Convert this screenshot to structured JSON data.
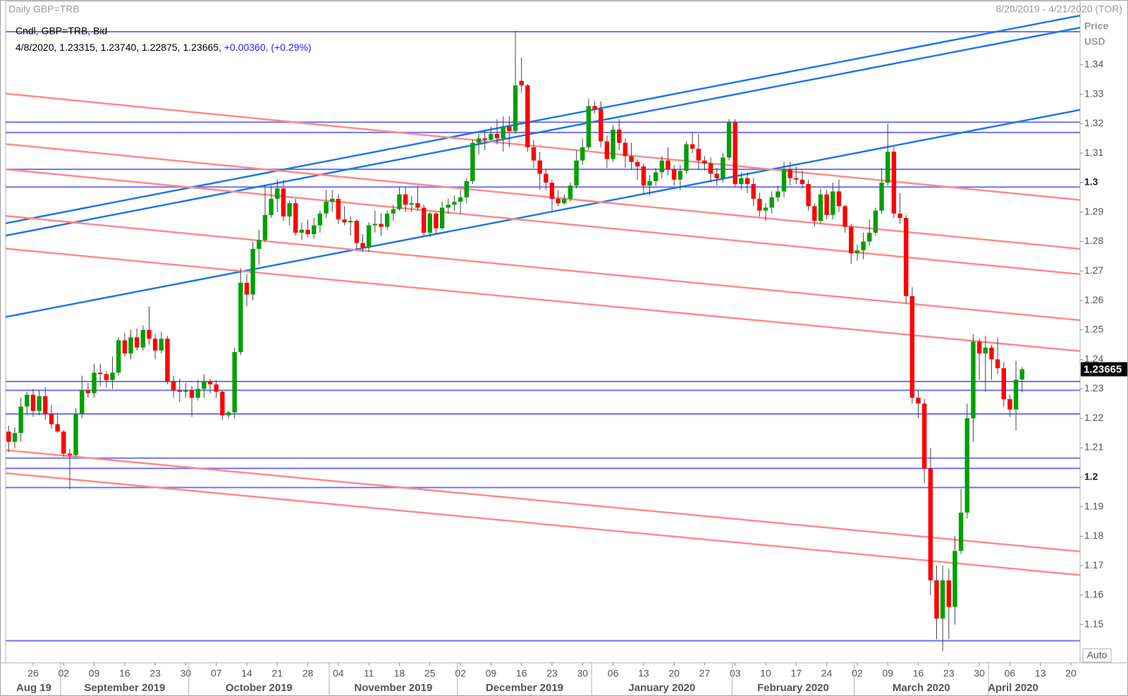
{
  "chart_data": {
    "type": "candlestick",
    "title": "Daily GBP=TRB",
    "date_range": "8/20/2019 - 4/21/2020 (TOR)",
    "legend_title": "Cndl, GBP=TRB, Bid",
    "last_labels": {
      "open": "1.23315",
      "high": "1.23740",
      "low": "1.22875",
      "close": "1.23665"
    },
    "change_label": "+0.00360,",
    "change_percent_label": "(+0.29%)",
    "ylabel": "Price",
    "yunit": "USD",
    "scale_button": "Auto",
    "up_color": "#00a000",
    "down_color": "#ff0000",
    "xlim": [
      "8/20/2019",
      "4/21/2020"
    ],
    "ylim": [
      1.137,
      1.3615
    ],
    "yticks": [
      1.15,
      1.16,
      1.17,
      1.18,
      1.19,
      1.2,
      1.21,
      1.22,
      1.23,
      1.24,
      1.25,
      1.26,
      1.27,
      1.28,
      1.29,
      1.3,
      1.31,
      1.32,
      1.33,
      1.34
    ],
    "xticks": [
      {
        "value": "8/26/2019",
        "label": "26"
      },
      {
        "value": "9/2/2019",
        "label": "02"
      },
      {
        "value": "9/9/2019",
        "label": "09"
      },
      {
        "value": "9/16/2019",
        "label": "16"
      },
      {
        "value": "9/23/2019",
        "label": "23"
      },
      {
        "value": "9/30/2019",
        "label": "30"
      },
      {
        "value": "10/7/2019",
        "label": "07"
      },
      {
        "value": "10/14/2019",
        "label": "14"
      },
      {
        "value": "10/21/2019",
        "label": "21"
      },
      {
        "value": "10/28/2019",
        "label": "28"
      },
      {
        "value": "11/4/2019",
        "label": "04"
      },
      {
        "value": "11/11/2019",
        "label": "11"
      },
      {
        "value": "11/18/2019",
        "label": "18"
      },
      {
        "value": "11/25/2019",
        "label": "25"
      },
      {
        "value": "12/2/2019",
        "label": "02"
      },
      {
        "value": "12/9/2019",
        "label": "09"
      },
      {
        "value": "12/16/2019",
        "label": "16"
      },
      {
        "value": "12/23/2019",
        "label": "23"
      },
      {
        "value": "12/30/2019",
        "label": "30"
      },
      {
        "value": "1/6/2020",
        "label": "06"
      },
      {
        "value": "1/13/2020",
        "label": "13"
      },
      {
        "value": "1/20/2020",
        "label": "20"
      },
      {
        "value": "1/27/2020",
        "label": "27"
      },
      {
        "value": "2/3/2020",
        "label": "03"
      },
      {
        "value": "2/10/2020",
        "label": "10"
      },
      {
        "value": "2/17/2020",
        "label": "17"
      },
      {
        "value": "2/24/2020",
        "label": "24"
      },
      {
        "value": "3/2/2020",
        "label": "02"
      },
      {
        "value": "3/9/2020",
        "label": "09"
      },
      {
        "value": "3/16/2020",
        "label": "16"
      },
      {
        "value": "3/23/2020",
        "label": "23"
      },
      {
        "value": "3/30/2020",
        "label": "30"
      },
      {
        "value": "4/6/2020",
        "label": "06"
      },
      {
        "value": "4/13/2020",
        "label": "13"
      },
      {
        "value": "4/20/2020",
        "label": "20"
      }
    ],
    "months": [
      {
        "value": "8/1/2019",
        "label": "Aug 19"
      },
      {
        "value": "9/1/2019",
        "label": "September 2019"
      },
      {
        "value": "10/1/2019",
        "label": "October 2019"
      },
      {
        "value": "11/1/2019",
        "label": "November 2019"
      },
      {
        "value": "12/1/2019",
        "label": "December 2019"
      },
      {
        "value": "1/1/2020",
        "label": "January 2020"
      },
      {
        "value": "2/1/2020",
        "label": "February 2020"
      },
      {
        "value": "3/1/2020",
        "label": "March 2020"
      },
      {
        "value": "4/1/2020",
        "label": "April 2020"
      }
    ],
    "hlines": {
      "color": "#7272f2",
      "values": [
        1.3512,
        1.3205,
        1.317,
        1.3045,
        1.2985,
        1.2325,
        1.2295,
        1.2215,
        1.2065,
        1.203,
        1.1965,
        1.1445
      ]
    },
    "trendlines": [
      {
        "color": "#1f77e8",
        "points": [
          [
            "8/20/2019",
            1.2864
          ],
          [
            "4/21/2020",
            1.3565
          ]
        ]
      },
      {
        "color": "#1f77e8",
        "points": [
          [
            "8/20/2019",
            1.2822
          ],
          [
            "4/21/2020",
            1.3524
          ]
        ]
      },
      {
        "color": "#1f77e8",
        "points": [
          [
            "8/20/2019",
            1.2546
          ],
          [
            "4/21/2020",
            1.3245
          ]
        ]
      },
      {
        "color": "#ff8a8a",
        "points": [
          [
            "8/20/2019",
            1.3301
          ],
          [
            "4/21/2020",
            1.2942
          ]
        ]
      },
      {
        "color": "#ff8a8a",
        "points": [
          [
            "8/20/2019",
            1.313
          ],
          [
            "4/21/2020",
            1.2776
          ]
        ]
      },
      {
        "color": "#ff8a8a",
        "points": [
          [
            "8/20/2019",
            1.3044
          ],
          [
            "4/21/2020",
            1.269
          ]
        ]
      },
      {
        "color": "#ff8a8a",
        "points": [
          [
            "8/20/2019",
            1.2886
          ],
          [
            "4/21/2020",
            1.2534
          ]
        ]
      },
      {
        "color": "#ff8a8a",
        "points": [
          [
            "8/20/2019",
            1.2775
          ],
          [
            "4/21/2020",
            1.2429
          ]
        ]
      },
      {
        "color": "#ff8a8a",
        "points": [
          [
            "8/20/2019",
            1.2091
          ],
          [
            "4/21/2020",
            1.1749
          ]
        ]
      },
      {
        "color": "#ff8a8a",
        "points": [
          [
            "8/20/2019",
            1.2013
          ],
          [
            "4/21/2020",
            1.1669
          ]
        ]
      }
    ],
    "x": [
      "8/20/2019",
      "8/21/2019",
      "8/22/2019",
      "8/23/2019",
      "8/26/2019",
      "8/27/2019",
      "8/28/2019",
      "8/29/2019",
      "8/30/2019",
      "9/2/2019",
      "9/3/2019",
      "9/4/2019",
      "9/5/2019",
      "9/6/2019",
      "9/9/2019",
      "9/10/2019",
      "9/11/2019",
      "9/12/2019",
      "9/13/2019",
      "9/16/2019",
      "9/17/2019",
      "9/18/2019",
      "9/19/2019",
      "9/20/2019",
      "9/23/2019",
      "9/24/2019",
      "9/25/2019",
      "9/26/2019",
      "9/27/2019",
      "9/30/2019",
      "10/1/2019",
      "10/2/2019",
      "10/3/2019",
      "10/4/2019",
      "10/7/2019",
      "10/8/2019",
      "10/9/2019",
      "10/10/2019",
      "10/11/2019",
      "10/14/2019",
      "10/15/2019",
      "10/16/2019",
      "10/17/2019",
      "10/18/2019",
      "10/21/2019",
      "10/22/2019",
      "10/23/2019",
      "10/24/2019",
      "10/25/2019",
      "10/28/2019",
      "10/29/2019",
      "10/30/2019",
      "10/31/2019",
      "11/1/2019",
      "11/4/2019",
      "11/5/2019",
      "11/6/2019",
      "11/7/2019",
      "11/8/2019",
      "11/11/2019",
      "11/12/2019",
      "11/13/2019",
      "11/14/2019",
      "11/15/2019",
      "11/18/2019",
      "11/19/2019",
      "11/20/2019",
      "11/21/2019",
      "11/22/2019",
      "11/25/2019",
      "11/26/2019",
      "11/27/2019",
      "11/28/2019",
      "11/29/2019",
      "12/2/2019",
      "12/3/2019",
      "12/4/2019",
      "12/5/2019",
      "12/6/2019",
      "12/9/2019",
      "12/10/2019",
      "12/11/2019",
      "12/12/2019",
      "12/13/2019",
      "12/16/2019",
      "12/17/2019",
      "12/18/2019",
      "12/19/2019",
      "12/20/2019",
      "12/23/2019",
      "12/24/2019",
      "12/25/2019",
      "12/26/2019",
      "12/27/2019",
      "12/30/2019",
      "12/31/2019",
      "1/1/2020",
      "1/2/2020",
      "1/3/2020",
      "1/6/2020",
      "1/7/2020",
      "1/8/2020",
      "1/9/2020",
      "1/10/2020",
      "1/13/2020",
      "1/14/2020",
      "1/15/2020",
      "1/16/2020",
      "1/17/2020",
      "1/20/2020",
      "1/21/2020",
      "1/22/2020",
      "1/23/2020",
      "1/24/2020",
      "1/27/2020",
      "1/28/2020",
      "1/29/2020",
      "1/30/2020",
      "1/31/2020",
      "2/3/2020",
      "2/4/2020",
      "2/5/2020",
      "2/6/2020",
      "2/7/2020",
      "2/10/2020",
      "2/11/2020",
      "2/12/2020",
      "2/13/2020",
      "2/14/2020",
      "2/17/2020",
      "2/18/2020",
      "2/19/2020",
      "2/20/2020",
      "2/21/2020",
      "2/24/2020",
      "2/25/2020",
      "2/26/2020",
      "2/27/2020",
      "2/28/2020",
      "3/2/2020",
      "3/3/2020",
      "3/4/2020",
      "3/5/2020",
      "3/6/2020",
      "3/9/2020",
      "3/10/2020",
      "3/11/2020",
      "3/12/2020",
      "3/13/2020",
      "3/16/2020",
      "3/17/2020",
      "3/18/2020",
      "3/19/2020",
      "3/20/2020",
      "3/23/2020",
      "3/24/2020",
      "3/25/2020",
      "3/26/2020",
      "3/27/2020",
      "3/30/2020",
      "3/31/2020",
      "4/1/2020",
      "4/2/2020",
      "4/3/2020",
      "4/6/2020",
      "4/7/2020",
      "4/8/2020"
    ],
    "open": [
      1.2155,
      1.212,
      1.215,
      1.224,
      1.228,
      1.2225,
      1.2275,
      1.2215,
      1.218,
      1.2155,
      1.208,
      1.2075,
      1.2215,
      1.2295,
      1.2285,
      1.2355,
      1.235,
      1.233,
      1.2355,
      1.2465,
      1.242,
      1.2475,
      1.244,
      1.25,
      1.247,
      1.243,
      1.247,
      1.2325,
      1.2295,
      1.229,
      1.2295,
      1.227,
      1.23,
      1.2325,
      1.2315,
      1.229,
      1.221,
      1.222,
      1.2425,
      1.266,
      1.262,
      1.2775,
      1.2805,
      1.289,
      1.2945,
      1.298,
      1.2885,
      1.293,
      1.283,
      1.284,
      1.2825,
      1.2855,
      1.2895,
      1.2935,
      1.2945,
      1.2875,
      1.2865,
      1.287,
      1.2795,
      1.278,
      1.2855,
      1.286,
      1.285,
      1.2895,
      1.291,
      1.296,
      1.2925,
      1.293,
      1.2915,
      1.283,
      1.2895,
      1.2845,
      1.2915,
      1.2925,
      1.2935,
      1.295,
      1.3005,
      1.3135,
      1.315,
      1.3145,
      1.3165,
      1.315,
      1.319,
      1.3175,
      1.3345,
      1.333,
      1.312,
      1.3075,
      1.303,
      1.3,
      1.2945,
      1.293,
      1.2945,
      1.299,
      1.3075,
      1.312,
      1.326,
      1.325,
      1.314,
      1.308,
      1.318,
      1.3135,
      1.309,
      1.307,
      1.3055,
      1.299,
      1.3005,
      1.3035,
      1.3075,
      1.3045,
      1.301,
      1.304,
      1.313,
      1.3115,
      1.3075,
      1.3065,
      1.303,
      1.3015,
      1.3085,
      1.3205,
      1.2995,
      1.3015,
      1.2995,
      1.2945,
      1.2905,
      1.2915,
      1.295,
      1.297,
      1.3045,
      1.3015,
      1.301,
      1.2995,
      1.292,
      1.287,
      1.296,
      1.289,
      1.297,
      1.292,
      1.285,
      1.276,
      1.277,
      1.28,
      1.283,
      1.2905,
      1.3,
      1.3105,
      1.2895,
      1.288,
      1.2615,
      1.227,
      1.225,
      1.203,
      1.165,
      1.152,
      1.165,
      1.156,
      1.175,
      1.188,
      1.22,
      1.246,
      1.242,
      1.244,
      1.24,
      1.237,
      1.2265,
      1.223,
      1.23315
    ],
    "high": [
      1.2175,
      1.217,
      1.227,
      1.229,
      1.23,
      1.2295,
      1.2305,
      1.2245,
      1.2215,
      1.216,
      1.2095,
      1.2235,
      1.2345,
      1.232,
      1.2385,
      1.2385,
      1.236,
      1.241,
      1.2475,
      1.249,
      1.25,
      1.2505,
      1.2515,
      1.258,
      1.2485,
      1.2495,
      1.248,
      1.2345,
      1.2335,
      1.232,
      1.231,
      1.233,
      1.235,
      1.2335,
      1.233,
      1.2295,
      1.2225,
      1.244,
      1.271,
      1.269,
      1.28,
      1.284,
      1.299,
      1.299,
      1.301,
      1.301,
      1.294,
      1.2945,
      1.2865,
      1.2875,
      1.288,
      1.2905,
      1.2975,
      1.2975,
      1.296,
      1.292,
      1.2885,
      1.2875,
      1.2825,
      1.2865,
      1.2905,
      1.2895,
      1.2905,
      1.2925,
      1.2985,
      1.2985,
      1.2955,
      1.299,
      1.2925,
      1.29,
      1.29,
      1.2935,
      1.2945,
      1.2955,
      1.2975,
      1.3015,
      1.3145,
      1.3165,
      1.3175,
      1.319,
      1.3215,
      1.3225,
      1.3225,
      1.3515,
      1.3425,
      1.3335,
      1.3145,
      1.3105,
      1.3045,
      1.301,
      1.2975,
      1.296,
      1.3,
      1.311,
      1.315,
      1.3285,
      1.3275,
      1.3275,
      1.316,
      1.3195,
      1.3215,
      1.315,
      1.3135,
      1.308,
      1.3065,
      1.3025,
      1.305,
      1.309,
      1.312,
      1.306,
      1.306,
      1.314,
      1.317,
      1.3165,
      1.309,
      1.3085,
      1.305,
      1.31,
      1.3215,
      1.3215,
      1.3035,
      1.3035,
      1.3015,
      1.2965,
      1.293,
      1.297,
      1.299,
      1.307,
      1.307,
      1.3055,
      1.304,
      1.301,
      1.293,
      1.298,
      1.2975,
      1.3,
      1.301,
      1.2925,
      1.286,
      1.279,
      1.283,
      1.2875,
      1.2915,
      1.305,
      1.32,
      1.312,
      1.2965,
      1.289,
      1.2645,
      1.2295,
      1.2265,
      1.21,
      1.17,
      1.17,
      1.169,
      1.18,
      1.196,
      1.225,
      1.2485,
      1.247,
      1.248,
      1.245,
      1.2475,
      1.239,
      1.228,
      1.2395,
      1.2374
    ],
    "low": [
      1.2085,
      1.21,
      1.212,
      1.221,
      1.2205,
      1.221,
      1.2195,
      1.2165,
      1.215,
      1.207,
      1.196,
      1.207,
      1.22,
      1.227,
      1.227,
      1.231,
      1.2305,
      1.23,
      1.2345,
      1.241,
      1.24,
      1.243,
      1.243,
      1.245,
      1.24,
      1.242,
      1.2315,
      1.227,
      1.2255,
      1.227,
      1.2205,
      1.226,
      1.227,
      1.2285,
      1.227,
      1.2195,
      1.22,
      1.22,
      1.2415,
      1.258,
      1.26,
      1.272,
      1.28,
      1.288,
      1.29,
      1.287,
      1.2855,
      1.282,
      1.2805,
      1.2815,
      1.281,
      1.283,
      1.288,
      1.29,
      1.286,
      1.2855,
      1.282,
      1.277,
      1.2765,
      1.2765,
      1.283,
      1.282,
      1.284,
      1.287,
      1.2905,
      1.29,
      1.29,
      1.2905,
      1.282,
      1.2815,
      1.2825,
      1.284,
      1.2895,
      1.2905,
      1.2895,
      1.293,
      1.2995,
      1.3095,
      1.311,
      1.314,
      1.313,
      1.3105,
      1.312,
      1.3165,
      1.3305,
      1.3105,
      1.305,
      1.2975,
      1.2975,
      1.2905,
      1.292,
      1.2925,
      1.2935,
      1.298,
      1.306,
      1.311,
      1.3235,
      1.312,
      1.305,
      1.307,
      1.311,
      1.305,
      1.3045,
      1.301,
      1.296,
      1.2955,
      1.299,
      1.3015,
      1.3025,
      1.299,
      1.2975,
      1.303,
      1.31,
      1.3045,
      1.304,
      1.3,
      1.299,
      1.3,
      1.3075,
      1.2985,
      1.2975,
      1.2965,
      1.292,
      1.2885,
      1.287,
      1.2895,
      1.2935,
      1.295,
      1.299,
      1.2995,
      1.298,
      1.2905,
      1.285,
      1.286,
      1.2875,
      1.2875,
      1.29,
      1.283,
      1.2725,
      1.2735,
      1.274,
      1.2785,
      1.282,
      1.2895,
      1.299,
      1.288,
      1.286,
      1.259,
      1.225,
      1.22,
      1.198,
      1.16,
      1.145,
      1.141,
      1.145,
      1.15,
      1.174,
      1.186,
      1.212,
      1.233,
      1.229,
      1.233,
      1.235,
      1.224,
      1.2205,
      1.216,
      1.22875
    ],
    "close": [
      1.212,
      1.215,
      1.224,
      1.228,
      1.2225,
      1.2275,
      1.2215,
      1.218,
      1.2155,
      1.208,
      1.2075,
      1.2215,
      1.2295,
      1.2285,
      1.2355,
      1.235,
      1.233,
      1.2355,
      1.2465,
      1.242,
      1.2475,
      1.244,
      1.25,
      1.247,
      1.243,
      1.247,
      1.2325,
      1.2295,
      1.229,
      1.2295,
      1.227,
      1.23,
      1.2325,
      1.2315,
      1.229,
      1.221,
      1.222,
      1.2425,
      1.266,
      1.262,
      1.2775,
      1.2805,
      1.289,
      1.2945,
      1.298,
      1.2885,
      1.293,
      1.283,
      1.284,
      1.2825,
      1.2855,
      1.2895,
      1.2935,
      1.2945,
      1.2875,
      1.2865,
      1.287,
      1.2795,
      1.278,
      1.2855,
      1.286,
      1.285,
      1.2895,
      1.291,
      1.296,
      1.2925,
      1.293,
      1.2915,
      1.283,
      1.2895,
      1.2845,
      1.2915,
      1.2925,
      1.2935,
      1.295,
      1.3005,
      1.3135,
      1.315,
      1.3145,
      1.3165,
      1.315,
      1.319,
      1.3175,
      1.333,
      1.333,
      1.312,
      1.3075,
      1.303,
      1.3,
      1.2945,
      1.293,
      1.2945,
      1.299,
      1.3075,
      1.312,
      1.326,
      1.325,
      1.314,
      1.308,
      1.318,
      1.3135,
      1.309,
      1.307,
      1.3055,
      1.299,
      1.3005,
      1.3035,
      1.3075,
      1.3045,
      1.301,
      1.304,
      1.313,
      1.3115,
      1.3075,
      1.3065,
      1.303,
      1.3015,
      1.3085,
      1.3205,
      1.2995,
      1.3015,
      1.2995,
      1.2945,
      1.2905,
      1.2915,
      1.295,
      1.297,
      1.3045,
      1.3015,
      1.301,
      1.2995,
      1.292,
      1.287,
      1.296,
      1.289,
      1.297,
      1.292,
      1.285,
      1.276,
      1.277,
      1.28,
      1.283,
      1.2905,
      1.3,
      1.3105,
      1.2895,
      1.288,
      1.2615,
      1.227,
      1.225,
      1.203,
      1.165,
      1.152,
      1.165,
      1.156,
      1.175,
      1.188,
      1.22,
      1.246,
      1.242,
      1.244,
      1.24,
      1.237,
      1.2265,
      1.223,
      1.2331,
      1.23665
    ]
  }
}
